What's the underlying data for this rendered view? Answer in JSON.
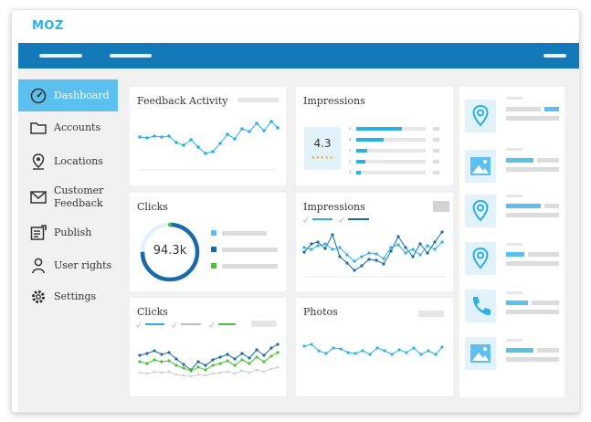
{
  "app": {
    "logo": "MOZ"
  },
  "colors": {
    "brand": "#1479b8",
    "accent": "#2bb0e6",
    "active_nav": "#5bc0ef",
    "series_dark": "#1a6aa8",
    "series_green": "#4cc23a",
    "gray_series": "#bdbdbd"
  },
  "sidebar": {
    "items": [
      {
        "label": "Dashboard",
        "icon": "dashboard-icon",
        "active": true
      },
      {
        "label": "Accounts",
        "icon": "folder-icon",
        "active": false
      },
      {
        "label": "Locations",
        "icon": "location-pin-icon",
        "active": false
      },
      {
        "label": "Customer Feedback",
        "icon": "mail-icon",
        "active": false
      },
      {
        "label": "Publish",
        "icon": "publish-icon",
        "active": false
      },
      {
        "label": "User rights",
        "icon": "user-icon",
        "active": false
      },
      {
        "label": "Settings",
        "icon": "gear-icon",
        "active": false
      }
    ]
  },
  "cards": {
    "feedback_activity": {
      "title": "Feedback Activity"
    },
    "impressions_rating": {
      "title": "Impressions",
      "rating": "4.3",
      "stars": "★★★★★",
      "star_counts": [
        "5",
        "4",
        "3",
        "2",
        "1"
      ]
    },
    "clicks_donut": {
      "title": "Clicks",
      "value": "94.3k",
      "progress": 0.75
    },
    "impressions_chart": {
      "title": "Impressions"
    },
    "clicks_chart": {
      "title": "Clicks"
    },
    "photos": {
      "title": "Photos"
    }
  },
  "location_list": {
    "icons": [
      "location-pin-icon",
      "image-icon",
      "location-pin-icon",
      "location-pin-icon",
      "phone-icon",
      "image-icon"
    ]
  }
}
